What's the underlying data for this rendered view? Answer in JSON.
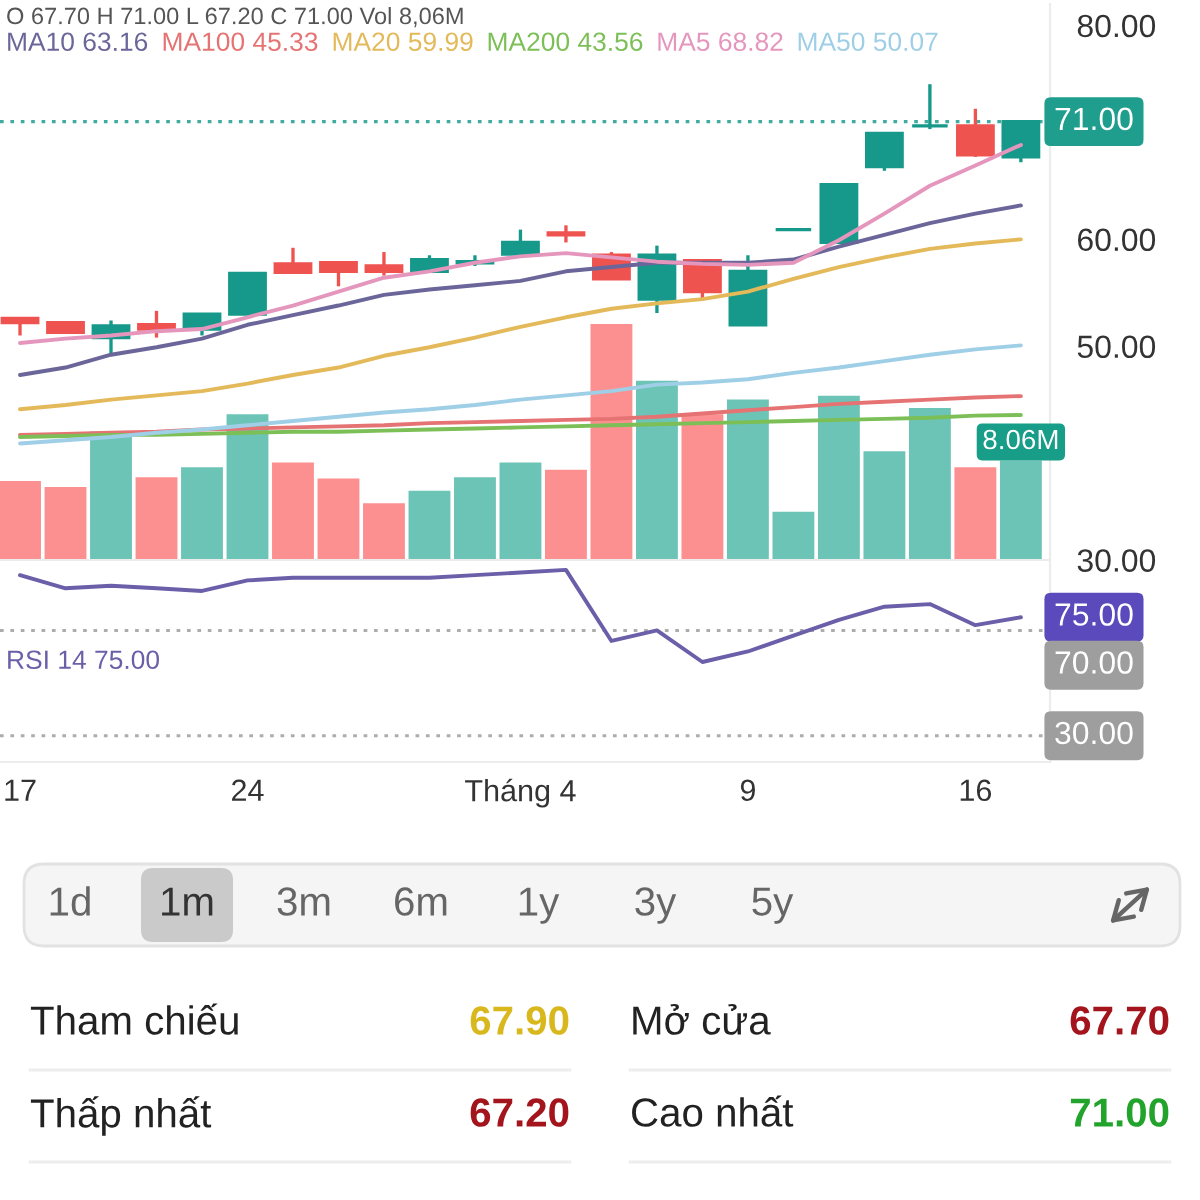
{
  "chart_data": [
    {
      "type": "candlestick",
      "annotations": [
        "O 67.70 H 71.00 L 67.20 C 71.00 Vol 8,06M"
      ],
      "categories": [
        null,
        null,
        null,
        null,
        null,
        null,
        null,
        null,
        null,
        null,
        null,
        null,
        null,
        null,
        null,
        null,
        null,
        null,
        null,
        null,
        null,
        null,
        null
      ],
      "ohlc": [
        [
          52.6,
          52.7,
          51.0,
          52.2
        ],
        [
          52.2,
          52.2,
          51.2,
          51.3
        ],
        [
          50.8,
          52.4,
          49.1,
          51.9
        ],
        [
          52.0,
          53.3,
          50.8,
          51.6
        ],
        [
          51.6,
          53.1,
          51.0,
          53.0
        ],
        [
          53.0,
          56.8,
          53.0,
          56.8
        ],
        [
          57.7,
          59.2,
          56.8,
          56.9
        ],
        [
          57.8,
          57.9,
          55.6,
          57.0
        ],
        [
          57.5,
          58.8,
          56.6,
          57.0
        ],
        [
          57.0,
          58.5,
          57.0,
          58.1
        ],
        [
          57.8,
          58.5,
          57.5,
          57.9
        ],
        [
          58.6,
          60.9,
          58.5,
          59.7
        ],
        [
          60.6,
          61.3,
          59.7,
          60.4
        ],
        [
          58.5,
          58.8,
          56.2,
          56.3
        ],
        [
          54.4,
          59.4,
          53.1,
          58.5
        ],
        [
          58.0,
          58.1,
          54.3,
          55.1
        ],
        [
          52.0,
          58.5,
          52.0,
          57.0
        ],
        [
          60.9,
          60.9,
          60.9,
          60.9
        ],
        [
          59.7,
          65.1,
          59.6,
          65.1
        ],
        [
          66.8,
          70.0,
          66.4,
          69.9
        ],
        [
          70.6,
          74.5,
          70.3,
          70.6
        ],
        [
          70.6,
          72.2,
          67.7,
          67.9
        ],
        [
          67.7,
          71.0,
          67.2,
          71.0
        ]
      ],
      "colors": [
        "#ef5350",
        "#ef5350",
        "#16998a",
        "#ef5350",
        "#16998a",
        "#16998a",
        "#ef5350",
        "#ef5350",
        "#ef5350",
        "#16998a",
        "#16998a",
        "#16998a",
        "#ef5350",
        "#ef5350",
        "#16998a",
        "#ef5350",
        "#16998a",
        "#16998a",
        "#16998a",
        "#16998a",
        "#16998a",
        "#ef5350",
        "#16998a"
      ],
      "series": [
        {
          "name": "MA10 63.16",
          "type": "line",
          "color": "#6b6699",
          "values": [
            47.3,
            48.0,
            49.2,
            49.9,
            50.7,
            52.0,
            52.9,
            53.8,
            54.8,
            55.3,
            55.7,
            56.1,
            57.0,
            57.4,
            57.8,
            57.8,
            57.8,
            58.1,
            59.3,
            60.4,
            61.5,
            62.4,
            63.16
          ]
        },
        {
          "name": "MA100 45.33",
          "type": "line",
          "color": "#e57373",
          "values": [
            41.7,
            41.8,
            41.9,
            42.0,
            42.2,
            42.3,
            42.4,
            42.5,
            42.6,
            42.8,
            42.9,
            43.0,
            43.1,
            43.2,
            43.4,
            43.7,
            44.0,
            44.3,
            44.6,
            44.8,
            45.0,
            45.2,
            45.33
          ]
        },
        {
          "name": "MA20 59.99",
          "type": "line",
          "color": "#e3b95a",
          "values": [
            44.1,
            44.5,
            45.0,
            45.4,
            45.8,
            46.5,
            47.3,
            48.0,
            49.1,
            49.9,
            50.8,
            51.8,
            52.7,
            53.5,
            54.0,
            54.4,
            55.1,
            56.3,
            57.4,
            58.3,
            59.1,
            59.6,
            59.99
          ]
        },
        {
          "name": "MA200 43.56",
          "type": "line",
          "color": "#7cbf57",
          "values": [
            41.5,
            41.6,
            41.7,
            41.7,
            41.8,
            41.9,
            42.0,
            42.0,
            42.1,
            42.2,
            42.3,
            42.4,
            42.5,
            42.6,
            42.7,
            42.8,
            42.9,
            43.0,
            43.1,
            43.2,
            43.3,
            43.5,
            43.56
          ]
        },
        {
          "name": "MA5 68.82",
          "type": "line",
          "color": "#e596bd",
          "values": [
            50.3,
            50.7,
            51.0,
            51.4,
            51.6,
            52.7,
            53.8,
            55.1,
            56.4,
            57.0,
            57.8,
            58.4,
            58.7,
            58.3,
            57.9,
            57.7,
            57.6,
            57.8,
            59.9,
            62.4,
            65.0,
            66.9,
            68.82
          ]
        },
        {
          "name": "MA50 50.07",
          "type": "line",
          "color": "#9fcfe6",
          "values": [
            40.9,
            41.2,
            41.5,
            41.9,
            42.2,
            42.6,
            43.0,
            43.4,
            43.8,
            44.1,
            44.5,
            45.0,
            45.4,
            45.8,
            46.4,
            46.6,
            46.9,
            47.5,
            48.0,
            48.6,
            49.2,
            49.7,
            50.07
          ]
        },
        {
          "type": "bar",
          "axis": "y2",
          "colors": [
            "#fc8f8f",
            "#fc8f8f",
            "#6cc4b6",
            "#fc8f8f",
            "#6cc4b6",
            "#6cc4b6",
            "#fc8f8f",
            "#fc8f8f",
            "#fc8f8f",
            "#6cc4b6",
            "#6cc4b6",
            "#6cc4b6",
            "#fc8f8f",
            "#fc8f8f",
            "#6cc4b6",
            "#fc8f8f",
            "#6cc4b6",
            "#6cc4b6",
            "#6cc4b6",
            "#6cc4b6",
            "#6cc4b6",
            "#fc8f8f",
            "#6cc4b6"
          ],
          "values": [
            6.4,
            5.9,
            10.4,
            6.7,
            7.5,
            11.8,
            7.9,
            6.6,
            4.6,
            5.6,
            6.7,
            7.9,
            7.3,
            19.1,
            14.5,
            11.8,
            13.0,
            3.9,
            13.3,
            8.8,
            12.3,
            7.5,
            8.06
          ],
          "value_labels": [
            null,
            null,
            null,
            null,
            null,
            null,
            null,
            null,
            null,
            null,
            null,
            null,
            null,
            null,
            null,
            null,
            null,
            null,
            null,
            null,
            null,
            null,
            "8.06M"
          ]
        }
      ],
      "ylim": [
        30,
        82
      ],
      "yticks": [
        {
          "value": 30,
          "label": "30.00"
        },
        {
          "value": 50,
          "label": "50.00"
        },
        {
          "value": 60,
          "label": "60.00"
        },
        {
          "value": 80,
          "label": "80.00"
        }
      ],
      "y2lim": [
        0,
        45
      ],
      "ref_lines": [
        {
          "axis": "y",
          "value": 71,
          "label": "71.00",
          "color": "#1f9e8e",
          "line_style": "dotted"
        }
      ],
      "legend": "top left",
      "tick_labels": "y"
    },
    {
      "type": "line",
      "categories": [
        "17",
        null,
        null,
        null,
        null,
        "24",
        null,
        null,
        null,
        null,
        null,
        "Tháng 4",
        null,
        null,
        null,
        null,
        "9",
        null,
        null,
        null,
        null,
        "16",
        null
      ],
      "series": [
        {
          "name": "RSI 14 75.00",
          "color": "#6a5fa8",
          "values": [
            91,
            86,
            87,
            86,
            85,
            89,
            90,
            90,
            90,
            90,
            91,
            92,
            93,
            66,
            70,
            58,
            62,
            68,
            74,
            79,
            80,
            72,
            75
          ],
          "value_labels": [
            null,
            null,
            null,
            null,
            null,
            null,
            null,
            null,
            null,
            null,
            null,
            null,
            null,
            null,
            null,
            null,
            null,
            null,
            null,
            null,
            null,
            null,
            "75.00"
          ]
        }
      ],
      "ylim": [
        20,
        96
      ],
      "ref_lines": [
        {
          "axis": "y",
          "value": 70,
          "label": "70.00",
          "color": "#9e9e9e",
          "line_style": "dotted"
        },
        {
          "axis": "y",
          "value": 30,
          "label": "30.00",
          "color": "#9e9e9e",
          "line_style": "dotted"
        }
      ],
      "legend": "left",
      "tick_labels": "x"
    },
    {
      "type": "other",
      "annotations": [
        "1d",
        "1m",
        "3m",
        "6m",
        "1y",
        "3y",
        "5y"
      ]
    },
    {
      "type": "other",
      "categories": [
        "Tham chiếu",
        "Mở cửa",
        "Thấp nhất",
        "Cao nhất"
      ],
      "value_labels": [
        "67.90",
        "67.70",
        "67.20",
        "71.00"
      ],
      "colors": [
        "#d9b81e",
        "#a3141c",
        "#a3141c",
        "#22a32c"
      ]
    }
  ]
}
